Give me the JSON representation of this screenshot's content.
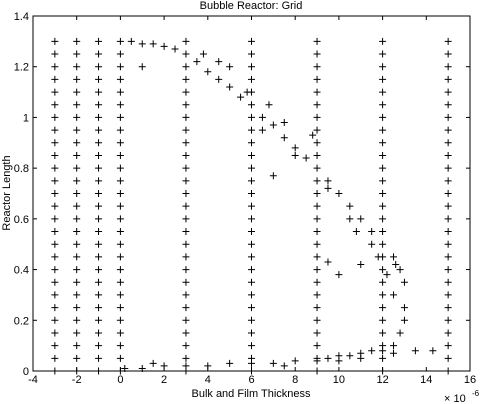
{
  "chart_data": {
    "type": "scatter",
    "title": "Bubble Reactor: Grid",
    "x_label": "Bulk and Film Thickness",
    "y_label": "Reactor Length",
    "x_multiplier": {
      "base": "× 10",
      "exponent": "-6"
    },
    "marker": "+",
    "color": "#000000",
    "xlim": [
      -4,
      16
    ],
    "xticks": [
      -4,
      -2,
      0,
      2,
      4,
      6,
      8,
      10,
      12,
      14,
      16
    ],
    "ylim": [
      0,
      1.4
    ],
    "yticks": [
      0,
      0.2,
      0.4,
      0.6,
      0.8,
      1,
      1.2,
      1.4
    ],
    "points": [
      [
        -3,
        0
      ],
      [
        -3,
        0.05
      ],
      [
        -3,
        0.1
      ],
      [
        -3,
        0.15
      ],
      [
        -3,
        0.2
      ],
      [
        -3,
        0.25
      ],
      [
        -3,
        0.3
      ],
      [
        -3,
        0.35
      ],
      [
        -3,
        0.4
      ],
      [
        -3,
        0.45
      ],
      [
        -3,
        0.5
      ],
      [
        -3,
        0.55
      ],
      [
        -3,
        0.6
      ],
      [
        -3,
        0.65
      ],
      [
        -3,
        0.7
      ],
      [
        -3,
        0.75
      ],
      [
        -3,
        0.8
      ],
      [
        -3,
        0.85
      ],
      [
        -3,
        0.9
      ],
      [
        -3,
        0.95
      ],
      [
        -3,
        1
      ],
      [
        -3,
        1.05
      ],
      [
        -3,
        1.1
      ],
      [
        -3,
        1.15
      ],
      [
        -3,
        1.2
      ],
      [
        -3,
        1.25
      ],
      [
        -3,
        1.3
      ],
      [
        -2,
        0
      ],
      [
        -2,
        0.05
      ],
      [
        -2,
        0.1
      ],
      [
        -2,
        0.15
      ],
      [
        -2,
        0.2
      ],
      [
        -2,
        0.25
      ],
      [
        -2,
        0.3
      ],
      [
        -2,
        0.35
      ],
      [
        -2,
        0.4
      ],
      [
        -2,
        0.45
      ],
      [
        -2,
        0.5
      ],
      [
        -2,
        0.55
      ],
      [
        -2,
        0.6
      ],
      [
        -2,
        0.65
      ],
      [
        -2,
        0.7
      ],
      [
        -2,
        0.75
      ],
      [
        -2,
        0.8
      ],
      [
        -2,
        0.85
      ],
      [
        -2,
        0.9
      ],
      [
        -2,
        0.95
      ],
      [
        -2,
        1
      ],
      [
        -2,
        1.05
      ],
      [
        -2,
        1.1
      ],
      [
        -2,
        1.15
      ],
      [
        -2,
        1.2
      ],
      [
        -2,
        1.25
      ],
      [
        -2,
        1.3
      ],
      [
        -1,
        0
      ],
      [
        -1,
        0.05
      ],
      [
        -1,
        0.1
      ],
      [
        -1,
        0.15
      ],
      [
        -1,
        0.2
      ],
      [
        -1,
        0.25
      ],
      [
        -1,
        0.3
      ],
      [
        -1,
        0.35
      ],
      [
        -1,
        0.4
      ],
      [
        -1,
        0.45
      ],
      [
        -1,
        0.5
      ],
      [
        -1,
        0.55
      ],
      [
        -1,
        0.6
      ],
      [
        -1,
        0.65
      ],
      [
        -1,
        0.7
      ],
      [
        -1,
        0.75
      ],
      [
        -1,
        0.8
      ],
      [
        -1,
        0.85
      ],
      [
        -1,
        0.9
      ],
      [
        -1,
        0.95
      ],
      [
        -1,
        1
      ],
      [
        -1,
        1.05
      ],
      [
        -1,
        1.1
      ],
      [
        -1,
        1.15
      ],
      [
        -1,
        1.2
      ],
      [
        -1,
        1.25
      ],
      [
        -1,
        1.3
      ],
      [
        0,
        0
      ],
      [
        0,
        0.05
      ],
      [
        0,
        0.1
      ],
      [
        0,
        0.15
      ],
      [
        0,
        0.2
      ],
      [
        0,
        0.25
      ],
      [
        0,
        0.3
      ],
      [
        0,
        0.35
      ],
      [
        0,
        0.4
      ],
      [
        0,
        0.45
      ],
      [
        0,
        0.5
      ],
      [
        0,
        0.55
      ],
      [
        0,
        0.6
      ],
      [
        0,
        0.65
      ],
      [
        0,
        0.7
      ],
      [
        0,
        0.75
      ],
      [
        0,
        0.8
      ],
      [
        0,
        0.85
      ],
      [
        0,
        0.9
      ],
      [
        0,
        0.95
      ],
      [
        0,
        1
      ],
      [
        0,
        1.05
      ],
      [
        0,
        1.1
      ],
      [
        0,
        1.15
      ],
      [
        0,
        1.2
      ],
      [
        0,
        1.25
      ],
      [
        0,
        1.3
      ],
      [
        3,
        0
      ],
      [
        3,
        0.05
      ],
      [
        3,
        0.1
      ],
      [
        3,
        0.15
      ],
      [
        3,
        0.2
      ],
      [
        3,
        0.25
      ],
      [
        3,
        0.3
      ],
      [
        3,
        0.35
      ],
      [
        3,
        0.4
      ],
      [
        3,
        0.45
      ],
      [
        3,
        0.5
      ],
      [
        3,
        0.55
      ],
      [
        3,
        0.6
      ],
      [
        3,
        0.65
      ],
      [
        3,
        0.7
      ],
      [
        3,
        0.75
      ],
      [
        3,
        0.8
      ],
      [
        3,
        0.85
      ],
      [
        3,
        0.9
      ],
      [
        3,
        0.95
      ],
      [
        3,
        1
      ],
      [
        3,
        1.05
      ],
      [
        3,
        1.1
      ],
      [
        3,
        1.15
      ],
      [
        3,
        1.2
      ],
      [
        3,
        1.25
      ],
      [
        3,
        1.3
      ],
      [
        6,
        0
      ],
      [
        6,
        0.05
      ],
      [
        6,
        0.1
      ],
      [
        6,
        0.15
      ],
      [
        6,
        0.2
      ],
      [
        6,
        0.25
      ],
      [
        6,
        0.3
      ],
      [
        6,
        0.35
      ],
      [
        6,
        0.4
      ],
      [
        6,
        0.45
      ],
      [
        6,
        0.5
      ],
      [
        6,
        0.55
      ],
      [
        6,
        0.6
      ],
      [
        6,
        0.65
      ],
      [
        6,
        0.7
      ],
      [
        6,
        0.75
      ],
      [
        6,
        0.8
      ],
      [
        6,
        0.85
      ],
      [
        6,
        0.9
      ],
      [
        6,
        0.95
      ],
      [
        6,
        1
      ],
      [
        6,
        1.05
      ],
      [
        6,
        1.1
      ],
      [
        6,
        1.15
      ],
      [
        6,
        1.2
      ],
      [
        6,
        1.25
      ],
      [
        6,
        1.3
      ],
      [
        9,
        0
      ],
      [
        9,
        0.05
      ],
      [
        9,
        0.1
      ],
      [
        9,
        0.15
      ],
      [
        9,
        0.2
      ],
      [
        9,
        0.25
      ],
      [
        9,
        0.3
      ],
      [
        9,
        0.35
      ],
      [
        9,
        0.4
      ],
      [
        9,
        0.45
      ],
      [
        9,
        0.5
      ],
      [
        9,
        0.55
      ],
      [
        9,
        0.6
      ],
      [
        9,
        0.65
      ],
      [
        9,
        0.7
      ],
      [
        9,
        0.75
      ],
      [
        9,
        0.8
      ],
      [
        9,
        0.85
      ],
      [
        9,
        0.9
      ],
      [
        9,
        0.95
      ],
      [
        9,
        1
      ],
      [
        9,
        1.05
      ],
      [
        9,
        1.1
      ],
      [
        9,
        1.15
      ],
      [
        9,
        1.2
      ],
      [
        9,
        1.25
      ],
      [
        9,
        1.3
      ],
      [
        12,
        0
      ],
      [
        12,
        0.05
      ],
      [
        12,
        0.1
      ],
      [
        12,
        0.15
      ],
      [
        12,
        0.2
      ],
      [
        12,
        0.25
      ],
      [
        12,
        0.3
      ],
      [
        12,
        0.35
      ],
      [
        12,
        0.4
      ],
      [
        12,
        0.45
      ],
      [
        12,
        0.5
      ],
      [
        12,
        0.55
      ],
      [
        12,
        0.6
      ],
      [
        12,
        0.65
      ],
      [
        12,
        0.7
      ],
      [
        12,
        0.75
      ],
      [
        12,
        0.8
      ],
      [
        12,
        0.85
      ],
      [
        12,
        0.9
      ],
      [
        12,
        0.95
      ],
      [
        12,
        1
      ],
      [
        12,
        1.05
      ],
      [
        12,
        1.1
      ],
      [
        12,
        1.15
      ],
      [
        12,
        1.2
      ],
      [
        12,
        1.25
      ],
      [
        12,
        1.3
      ],
      [
        15,
        0
      ],
      [
        15,
        0.05
      ],
      [
        15,
        0.1
      ],
      [
        15,
        0.15
      ],
      [
        15,
        0.2
      ],
      [
        15,
        0.25
      ],
      [
        15,
        0.3
      ],
      [
        15,
        0.35
      ],
      [
        15,
        0.4
      ],
      [
        15,
        0.45
      ],
      [
        15,
        0.5
      ],
      [
        15,
        0.55
      ],
      [
        15,
        0.6
      ],
      [
        15,
        0.65
      ],
      [
        15,
        0.7
      ],
      [
        15,
        0.75
      ],
      [
        15,
        0.8
      ],
      [
        15,
        0.85
      ],
      [
        15,
        0.9
      ],
      [
        15,
        0.95
      ],
      [
        15,
        1
      ],
      [
        15,
        1.05
      ],
      [
        15,
        1.1
      ],
      [
        15,
        1.15
      ],
      [
        15,
        1.2
      ],
      [
        15,
        1.25
      ],
      [
        15,
        1.3
      ],
      [
        0.5,
        1.3
      ],
      [
        1,
        1.29
      ],
      [
        1.5,
        1.29
      ],
      [
        2,
        1.28
      ],
      [
        2.5,
        1.27
      ],
      [
        1,
        1.2
      ],
      [
        3.5,
        1.22
      ],
      [
        4,
        1.18
      ],
      [
        4.5,
        1.15
      ],
      [
        5,
        1.12
      ],
      [
        5.5,
        1.08
      ],
      [
        6.5,
        1
      ],
      [
        7,
        0.97
      ],
      [
        7.5,
        0.92
      ],
      [
        8,
        0.88
      ],
      [
        8.5,
        0.84
      ],
      [
        9.5,
        0.75
      ],
      [
        10,
        0.7
      ],
      [
        10.5,
        0.65
      ],
      [
        11,
        0.6
      ],
      [
        11.5,
        0.55
      ],
      [
        12.5,
        0.45
      ],
      [
        13,
        0.35
      ],
      [
        13,
        0.25
      ],
      [
        12.8,
        0.15
      ],
      [
        12.5,
        0.1
      ],
      [
        4.5,
        1.22
      ],
      [
        5,
        1.2
      ],
      [
        6.5,
        0.95
      ],
      [
        7.5,
        0.98
      ],
      [
        8,
        0.85
      ],
      [
        9.5,
        0.72
      ],
      [
        10.5,
        0.6
      ],
      [
        11.5,
        0.5
      ],
      [
        12.5,
        0.3
      ],
      [
        13,
        0.2
      ],
      [
        7,
        0.77
      ],
      [
        9.5,
        0.43
      ],
      [
        13.5,
        0.08
      ],
      [
        14.3,
        0.08
      ],
      [
        10,
        0.38
      ],
      [
        11,
        0.42
      ],
      [
        8.8,
        0.93
      ],
      [
        6.8,
        1.05
      ],
      [
        5.8,
        1.1
      ],
      [
        3.8,
        1.25
      ],
      [
        12.8,
        0.4
      ],
      [
        12.6,
        0.42
      ],
      [
        12.2,
        0.38
      ],
      [
        11.8,
        0.45
      ],
      [
        10.8,
        0.55
      ],
      [
        0.2,
        0.01
      ],
      [
        1,
        0.01
      ],
      [
        2,
        0.02
      ],
      [
        3,
        0.02
      ],
      [
        4,
        0.02
      ],
      [
        5,
        0.03
      ],
      [
        6,
        0.03
      ],
      [
        7,
        0.03
      ],
      [
        8,
        0.04
      ],
      [
        9,
        0.04
      ],
      [
        9.5,
        0.05
      ],
      [
        10,
        0.06
      ],
      [
        10.5,
        0.06
      ],
      [
        11,
        0.07
      ],
      [
        11.5,
        0.08
      ],
      [
        12,
        0.08
      ],
      [
        1.5,
        0.03
      ],
      [
        7.5,
        0.02
      ],
      [
        10,
        0.04
      ],
      [
        11,
        0.05
      ],
      [
        12.5,
        0.07
      ]
    ]
  }
}
